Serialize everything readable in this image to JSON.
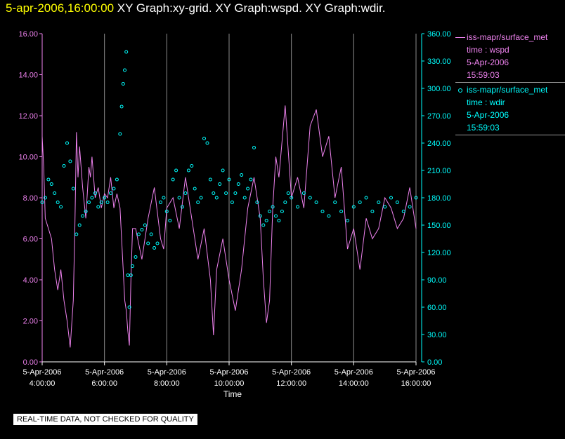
{
  "header": {
    "timestamp": "5-apr-2006,16:00:00",
    "graphs": "XY Graph:xy-grid.  XY Graph:wspd.  XY Graph:wdir."
  },
  "disclaimer": "REAL-TIME DATA, NOT CHECKED FOR QUALITY",
  "legend": [
    {
      "lines": [
        "iss-mapr/surface_met",
        "time : wspd",
        "5-Apr-2006",
        "15:59:03"
      ],
      "color": "#ee82ee",
      "style": "line"
    },
    {
      "lines": [
        "iss-mapr/surface_met",
        "time : wdir",
        "5-Apr-2006",
        "15:59:03"
      ],
      "color": "#00ffff",
      "style": "circle"
    }
  ],
  "chart_data": {
    "type": "line",
    "xlabel": "Time",
    "x_ticks": [
      {
        "d": "5-Apr-2006",
        "t": "4:00:00",
        "h": 4
      },
      {
        "d": "5-Apr-2006",
        "t": "6:00:00",
        "h": 6
      },
      {
        "d": "5-Apr-2006",
        "t": "8:00:00",
        "h": 8
      },
      {
        "d": "5-Apr-2006",
        "t": "10:00:00",
        "h": 10
      },
      {
        "d": "5-Apr-2006",
        "t": "12:00:00",
        "h": 12
      },
      {
        "d": "5-Apr-2006",
        "t": "14:00:00",
        "h": 14
      },
      {
        "d": "5-Apr-2006",
        "t": "16:00:00",
        "h": 16
      }
    ],
    "xlim": [
      4,
      16
    ],
    "y_left": {
      "lim": [
        0,
        16
      ],
      "ticks": [
        "0.00",
        "2.00",
        "4.00",
        "6.00",
        "8.00",
        "10.00",
        "12.00",
        "14.00",
        "16.00"
      ],
      "color": "#ee82ee"
    },
    "y_right": {
      "lim": [
        0,
        360
      ],
      "ticks": [
        "0.00",
        "30.00",
        "60.00",
        "90.00",
        "120.00",
        "150.00",
        "180.00",
        "210.00",
        "240.00",
        "270.00",
        "300.00",
        "330.00",
        "360.00"
      ],
      "color": "#00ffff"
    },
    "grid": "vertical",
    "series": [
      {
        "name": "wspd",
        "axis": "left",
        "color": "#ee82ee",
        "style": "line",
        "x": [
          4.0,
          4.05,
          4.1,
          4.2,
          4.3,
          4.4,
          4.5,
          4.6,
          4.7,
          4.8,
          4.9,
          5.0,
          5.05,
          5.1,
          5.15,
          5.2,
          5.3,
          5.4,
          5.5,
          5.55,
          5.6,
          5.65,
          5.7,
          5.8,
          5.9,
          6.0,
          6.1,
          6.2,
          6.3,
          6.4,
          6.5,
          6.6,
          6.65,
          6.7,
          6.75,
          6.8,
          6.85,
          6.9,
          7.0,
          7.2,
          7.4,
          7.6,
          7.8,
          7.9,
          8.0,
          8.2,
          8.4,
          8.6,
          8.8,
          9.0,
          9.2,
          9.4,
          9.5,
          9.6,
          9.8,
          10.0,
          10.2,
          10.4,
          10.6,
          10.8,
          11.0,
          11.1,
          11.2,
          11.3,
          11.4,
          11.5,
          11.6,
          11.8,
          12.0,
          12.2,
          12.4,
          12.6,
          12.8,
          13.0,
          13.2,
          13.4,
          13.6,
          13.8,
          14.0,
          14.2,
          14.4,
          14.6,
          14.8,
          15.0,
          15.2,
          15.4,
          15.6,
          15.8,
          16.0
        ],
        "y": [
          11.0,
          9.5,
          7.0,
          6.5,
          6.0,
          4.5,
          3.5,
          4.5,
          3.0,
          2.0,
          0.7,
          3.0,
          6.5,
          11.2,
          9.0,
          10.5,
          8.5,
          7.0,
          9.5,
          9.0,
          10.0,
          9.0,
          8.0,
          8.5,
          7.5,
          8.2,
          8.0,
          9.0,
          7.5,
          8.2,
          7.5,
          4.5,
          3.0,
          2.5,
          1.5,
          0.8,
          4.0,
          6.5,
          6.5,
          5.0,
          7.0,
          8.5,
          6.0,
          5.5,
          7.5,
          8.0,
          6.5,
          9.0,
          7.0,
          5.0,
          6.5,
          4.0,
          1.3,
          4.5,
          6.0,
          4.0,
          2.5,
          4.5,
          7.5,
          9.0,
          7.0,
          4.0,
          1.9,
          3.0,
          7.5,
          10.0,
          9.0,
          12.5,
          8.0,
          9.0,
          7.5,
          11.5,
          12.3,
          10.0,
          11.0,
          8.0,
          9.5,
          5.5,
          6.5,
          4.5,
          7.0,
          6.0,
          6.5,
          8.0,
          7.5,
          6.5,
          7.0,
          8.5,
          6.5
        ]
      },
      {
        "name": "wdir",
        "axis": "right",
        "color": "#00ffff",
        "style": "circle",
        "x": [
          4.0,
          4.1,
          4.2,
          4.3,
          4.4,
          4.5,
          4.6,
          4.7,
          4.8,
          4.9,
          5.0,
          5.1,
          5.2,
          5.3,
          5.4,
          5.5,
          5.6,
          5.7,
          5.8,
          5.9,
          6.0,
          6.1,
          6.2,
          6.3,
          6.4,
          6.5,
          6.55,
          6.6,
          6.65,
          6.7,
          6.75,
          6.8,
          6.85,
          6.9,
          7.0,
          7.1,
          7.2,
          7.3,
          7.4,
          7.5,
          7.6,
          7.7,
          7.8,
          7.9,
          8.0,
          8.1,
          8.2,
          8.3,
          8.4,
          8.5,
          8.6,
          8.7,
          8.8,
          8.9,
          9.0,
          9.1,
          9.2,
          9.3,
          9.4,
          9.5,
          9.6,
          9.7,
          9.8,
          9.9,
          10.0,
          10.1,
          10.2,
          10.3,
          10.4,
          10.5,
          10.6,
          10.7,
          10.8,
          10.9,
          11.0,
          11.1,
          11.2,
          11.3,
          11.4,
          11.5,
          11.6,
          11.7,
          11.8,
          11.9,
          12.0,
          12.2,
          12.4,
          12.6,
          12.8,
          13.0,
          13.2,
          13.4,
          13.6,
          13.8,
          14.0,
          14.2,
          14.4,
          14.6,
          14.8,
          15.0,
          15.2,
          15.4,
          15.6,
          15.8,
          16.0
        ],
        "y": [
          175,
          180,
          200,
          195,
          185,
          175,
          170,
          215,
          240,
          220,
          190,
          140,
          150,
          160,
          165,
          175,
          180,
          185,
          170,
          175,
          180,
          175,
          185,
          190,
          200,
          250,
          280,
          305,
          320,
          340,
          95,
          60,
          95,
          105,
          115,
          140,
          145,
          150,
          130,
          140,
          125,
          130,
          175,
          180,
          165,
          155,
          200,
          210,
          180,
          170,
          185,
          210,
          215,
          190,
          175,
          180,
          245,
          240,
          200,
          185,
          180,
          195,
          210,
          185,
          200,
          175,
          185,
          195,
          205,
          180,
          190,
          200,
          235,
          175,
          160,
          150,
          155,
          165,
          170,
          160,
          155,
          165,
          175,
          185,
          180,
          170,
          185,
          180,
          175,
          165,
          160,
          175,
          165,
          155,
          170,
          175,
          180,
          165,
          175,
          170,
          180,
          175,
          165,
          170,
          180
        ]
      }
    ]
  }
}
